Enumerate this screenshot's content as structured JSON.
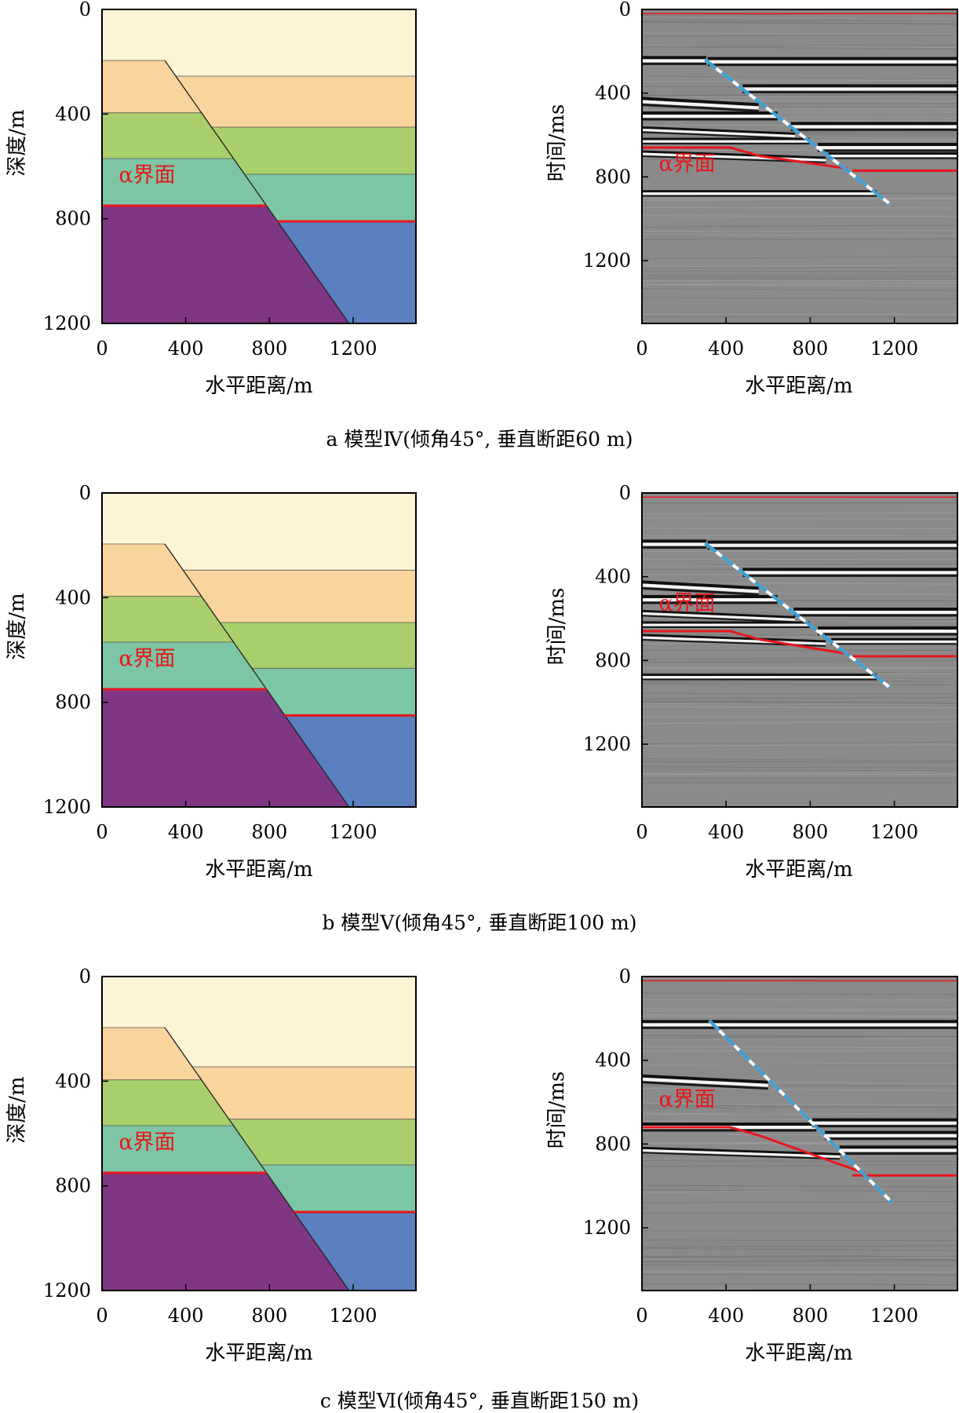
{
  "figure": {
    "captions": [
      "a  模型Ⅳ(倾角45°, 垂直断距60 m)",
      "b  模型Ⅴ(倾角45°, 垂直断距100 m)",
      "c  模型Ⅵ(倾角45°, 垂直断距150 m)"
    ]
  },
  "colors": {
    "layer1": "#fdf4d6",
    "layer2": "#f9d49c",
    "layer3": "#a8cf6c",
    "layer4": "#7cc6a6",
    "purple": "#7f3783",
    "blue": "#5a80c0",
    "alpha_line": "#e8161b",
    "fault_dash": "#3aa0d8",
    "seismic_bg": "#8a8a8a"
  },
  "chart_data": [
    {
      "id": "a-depth",
      "type": "area",
      "xlabel": "水平距离/m",
      "ylabel": "深度/m",
      "xlim": [
        0,
        1500
      ],
      "ylim": [
        0,
        1200
      ],
      "xticks": [
        "0",
        "400",
        "800",
        "1200"
      ],
      "yticks": [
        "0",
        "400",
        "800",
        "1200"
      ],
      "annotation": "α界面",
      "annotation_at": [
        80,
        660
      ],
      "fault": {
        "dip_deg": 45,
        "top": [
          300,
          195
        ],
        "bottom": [
          1180,
          1200
        ]
      },
      "left_horizons": [
        195,
        395,
        570,
        750
      ],
      "right_horizons": [
        255,
        450,
        630,
        810
      ],
      "alpha_left": 750,
      "alpha_right": 810
    },
    {
      "id": "a-time",
      "type": "heatmap",
      "xlabel": "水平距离/m",
      "ylabel": "时间/ms",
      "xlim": [
        0,
        1500
      ],
      "ylim": [
        0,
        1500
      ],
      "xticks": [
        "0",
        "400",
        "800",
        "1200"
      ],
      "yticks": [
        "0",
        "400",
        "800",
        "1200"
      ],
      "annotation": "α界面",
      "annotation_at": [
        80,
        770
      ],
      "left_reflections": [
        245,
        440,
        510,
        575,
        630,
        690,
        880
      ],
      "right_reflections": [
        250,
        380,
        560,
        660,
        700
      ],
      "fault_line": [
        [
          300,
          240
        ],
        [
          1180,
          930
        ]
      ],
      "alpha_left": 660,
      "alpha_right": 770
    },
    {
      "id": "b-depth",
      "type": "area",
      "xlabel": "水平距离/m",
      "ylabel": "深度/m",
      "xlim": [
        0,
        1500
      ],
      "ylim": [
        0,
        1200
      ],
      "xticks": [
        "0",
        "400",
        "800",
        "1200"
      ],
      "yticks": [
        "0",
        "400",
        "800",
        "1200"
      ],
      "annotation": "α界面",
      "annotation_at": [
        80,
        660
      ],
      "fault": {
        "dip_deg": 45,
        "top": [
          300,
          195
        ],
        "bottom": [
          1180,
          1200
        ]
      },
      "left_horizons": [
        195,
        395,
        570,
        750
      ],
      "right_horizons": [
        295,
        495,
        670,
        850
      ],
      "alpha_left": 750,
      "alpha_right": 850
    },
    {
      "id": "b-time",
      "type": "heatmap",
      "xlabel": "水平距离/m",
      "ylabel": "时间/ms",
      "xlim": [
        0,
        1500
      ],
      "ylim": [
        0,
        1500
      ],
      "xticks": [
        "0",
        "400",
        "800",
        "1200"
      ],
      "yticks": [
        "0",
        "400",
        "800",
        "1200"
      ],
      "annotation": "α界面",
      "annotation_at": [
        80,
        560
      ],
      "left_reflections": [
        245,
        440,
        510,
        575,
        630,
        690,
        880
      ],
      "right_reflections": [
        250,
        380,
        570,
        660,
        710
      ],
      "fault_line": [
        [
          300,
          240
        ],
        [
          1180,
          930
        ]
      ],
      "alpha_left": 660,
      "alpha_right": 780
    },
    {
      "id": "c-depth",
      "type": "area",
      "xlabel": "水平距离/m",
      "ylabel": "深度/m",
      "xlim": [
        0,
        1500
      ],
      "ylim": [
        0,
        1200
      ],
      "xticks": [
        "0",
        "400",
        "800",
        "1200"
      ],
      "yticks": [
        "0",
        "400",
        "800",
        "1200"
      ],
      "annotation": "α界面",
      "annotation_at": [
        80,
        660
      ],
      "fault": {
        "dip_deg": 45,
        "top": [
          300,
          195
        ],
        "bottom": [
          1180,
          1200
        ]
      },
      "left_horizons": [
        195,
        395,
        570,
        750
      ],
      "right_horizons": [
        345,
        545,
        720,
        900
      ],
      "alpha_left": 750,
      "alpha_right": 900
    },
    {
      "id": "c-time",
      "type": "heatmap",
      "xlabel": "水平距离/m",
      "ylabel": "时间/ms",
      "xlim": [
        0,
        1500
      ],
      "ylim": [
        0,
        1500
      ],
      "xticks": [
        "0",
        "400",
        "800",
        "1200"
      ],
      "yticks": [
        "0",
        "400",
        "800",
        "1200"
      ],
      "annotation": "α界面",
      "annotation_at": [
        80,
        620
      ],
      "left_reflections": [
        230,
        490,
        720,
        830
      ],
      "right_reflections": [
        230,
        700,
        760,
        830
      ],
      "fault_line": [
        [
          320,
          210
        ],
        [
          1190,
          1080
        ]
      ],
      "alpha_left": 720,
      "alpha_right": 950
    }
  ]
}
